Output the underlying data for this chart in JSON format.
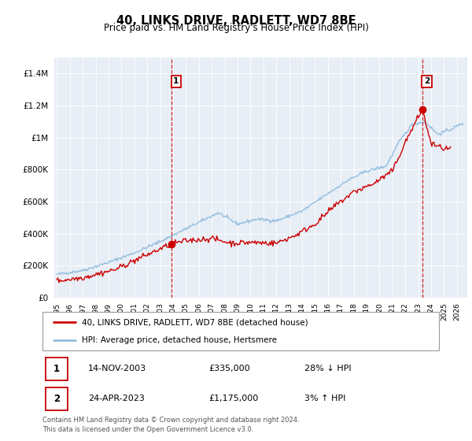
{
  "title": "40, LINKS DRIVE, RADLETT, WD7 8BE",
  "subtitle": "Price paid vs. HM Land Registry's House Price Index (HPI)",
  "ytick_labels": [
    "£0",
    "£200K",
    "£400K",
    "£600K",
    "£800K",
    "£1M",
    "£1.2M",
    "£1.4M"
  ],
  "ytick_values": [
    0,
    200000,
    400000,
    600000,
    800000,
    1000000,
    1200000,
    1400000
  ],
  "ylim": [
    0,
    1500000
  ],
  "xlim_start": 1994.8,
  "xlim_end": 2026.8,
  "hpi_color": "#94bfe0",
  "price_color": "#cc0000",
  "sale1_x": 2003.87,
  "sale1_price": 335000,
  "sale2_x": 2023.3,
  "sale2_price": 1175000,
  "legend_line1": "40, LINKS DRIVE, RADLETT, WD7 8BE (detached house)",
  "legend_line2": "HPI: Average price, detached house, Hertsmere",
  "footer1": "Contains HM Land Registry data © Crown copyright and database right 2024.",
  "footer2": "This data is licensed under the Open Government Licence v3.0.",
  "table_rows": [
    {
      "label": "1",
      "date": "14-NOV-2003",
      "price": "£335,000",
      "pct": "28% ↓ HPI"
    },
    {
      "label": "2",
      "date": "24-APR-2023",
      "price": "£1,175,000",
      "pct": "3% ↑ HPI"
    }
  ],
  "background_color": "#ffffff",
  "plot_bg_color": "#e8eef5"
}
